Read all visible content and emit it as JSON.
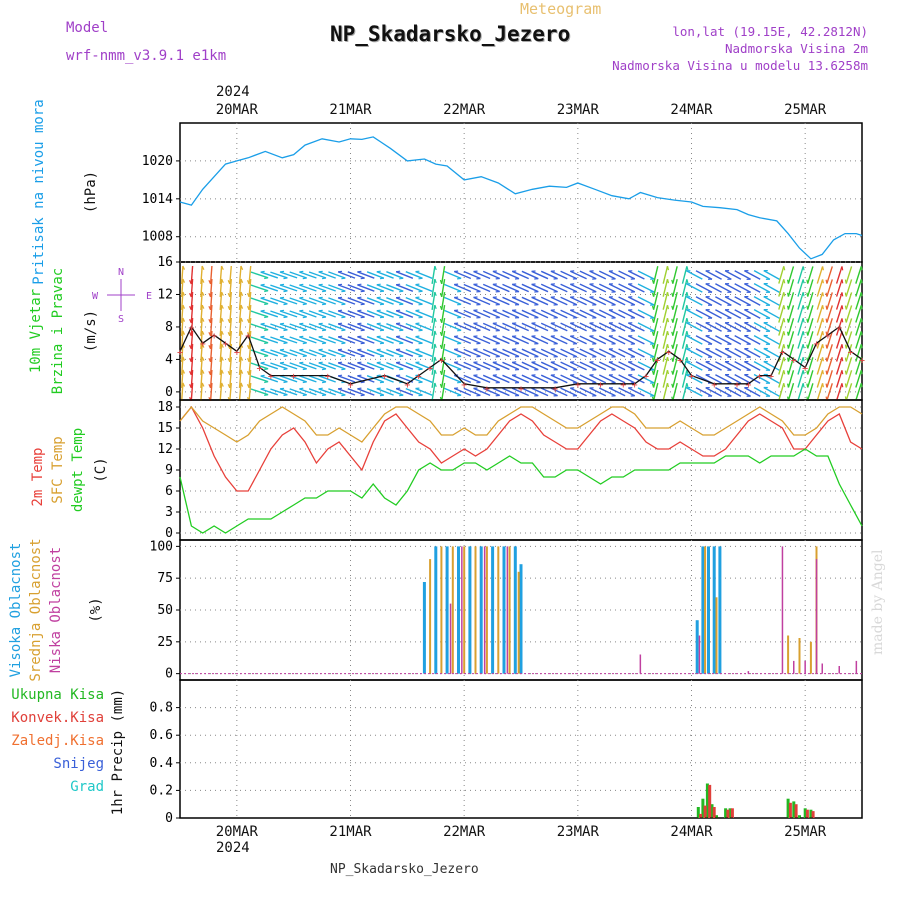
{
  "header": {
    "subtitle": "Meteogram",
    "title": "NP_Skadarsko_Jezero",
    "model_label": "Model",
    "model_value": "wrf-nmm_v3.9.1  e1km",
    "lonlat": "lon,lat (19.15E, 42.2812N)",
    "elevation": "Nadmorska Visina 2m",
    "model_elevation": "Nadmorska Visina u modelu 13.6258m",
    "year_top": "2024",
    "year_bottom": "2024",
    "footer": "NP_Skadarsko_Jezero",
    "watermark": "made by Angel"
  },
  "colors": {
    "pressure": "#1a9ee8",
    "purple": "#a040c8",
    "green": "#22cc22",
    "red": "#e8403a",
    "orange": "#d8a030",
    "blue": "#3a60d8",
    "magenta": "#c83aa0",
    "cyan": "#20c8c8",
    "cloud_high": "#20a0e0",
    "cloud_mid": "#d8a030",
    "cloud_low": "#c040a0",
    "precip_total": "#22b822",
    "precip_conv": "#e0403a"
  },
  "chart_data": [
    {
      "type": "line",
      "name": "pressure",
      "labels": [
        "Pritisak na nivou mora",
        "(hPa)"
      ],
      "x_ticks": [
        "20MAR",
        "21MAR",
        "22MAR",
        "23MAR",
        "24MAR",
        "25MAR"
      ],
      "ylim": [
        1004,
        1026
      ],
      "y_ticks": [
        1008,
        1014,
        1020
      ],
      "x": [
        19.5,
        19.6,
        19.7,
        19.8,
        19.9,
        20.0,
        20.1,
        20.25,
        20.4,
        20.5,
        20.6,
        20.75,
        20.9,
        21.0,
        21.1,
        21.2,
        21.35,
        21.5,
        21.65,
        21.75,
        21.85,
        22.0,
        22.15,
        22.3,
        22.45,
        22.6,
        22.75,
        22.9,
        23.0,
        23.15,
        23.3,
        23.45,
        23.55,
        23.7,
        23.85,
        24.0,
        24.1,
        24.25,
        24.4,
        24.5,
        24.6,
        24.75,
        24.85,
        24.95,
        25.05,
        25.15,
        25.25,
        25.35,
        25.45,
        25.5
      ],
      "y": [
        1013.5,
        1013,
        1015.5,
        1017.5,
        1019.5,
        1020.0,
        1020.5,
        1021.5,
        1020.5,
        1021,
        1022.5,
        1023.5,
        1023.0,
        1023.5,
        1023.4,
        1023.8,
        1022.0,
        1020.0,
        1020.3,
        1019.5,
        1019.2,
        1017.0,
        1017.5,
        1016.5,
        1014.8,
        1015.5,
        1016.0,
        1015.8,
        1016.5,
        1015.5,
        1014.5,
        1014.0,
        1015.0,
        1014.2,
        1013.8,
        1013.5,
        1012.8,
        1012.6,
        1012.3,
        1011.5,
        1011.0,
        1010.5,
        1008.5,
        1006.2,
        1004.5,
        1005.2,
        1007.5,
        1008.5,
        1008.5,
        1008.2
      ]
    },
    {
      "type": "line",
      "name": "wind",
      "labels": [
        "10m Vjetar",
        "Brzina i Pravac",
        "(m/s)"
      ],
      "compass": [
        "N",
        "W",
        "E",
        "S"
      ],
      "ylim": [
        -1,
        16
      ],
      "y_ticks": [
        0,
        4,
        8,
        12,
        16
      ],
      "x": [
        19.5,
        19.6,
        19.7,
        19.8,
        19.9,
        20.0,
        20.1,
        20.2,
        20.3,
        20.5,
        20.8,
        21.0,
        21.3,
        21.5,
        21.6,
        21.7,
        21.8,
        22.0,
        22.2,
        22.5,
        22.8,
        23.0,
        23.2,
        23.4,
        23.5,
        23.6,
        23.7,
        23.8,
        23.9,
        24.0,
        24.2,
        24.4,
        24.5,
        24.6,
        24.7,
        24.8,
        24.9,
        25.0,
        25.1,
        25.2,
        25.3,
        25.4,
        25.5
      ],
      "y": [
        5,
        8,
        6,
        7,
        6,
        5,
        7,
        3,
        2,
        2,
        2,
        1,
        2,
        1,
        2,
        3,
        4,
        1,
        0.5,
        0.5,
        0.5,
        1,
        1,
        1,
        1,
        2,
        4,
        5,
        4,
        2,
        1,
        1,
        1,
        2,
        2,
        5,
        4,
        3,
        6,
        7,
        8,
        5,
        4
      ]
    },
    {
      "type": "line",
      "name": "temperature",
      "labels": [
        "2m Temp",
        "SFC Temp",
        "dewpt Temp",
        "(C)"
      ],
      "series_names": [
        "2m Temp",
        "SFC Temp",
        "dewpt Temp"
      ],
      "ylim": [
        -1,
        19
      ],
      "y_ticks": [
        0,
        3,
        6,
        9,
        12,
        15,
        18
      ],
      "x": [
        19.5,
        19.6,
        19.7,
        19.8,
        19.9,
        20.0,
        20.1,
        20.2,
        20.3,
        20.4,
        20.5,
        20.6,
        20.7,
        20.8,
        20.9,
        21.0,
        21.1,
        21.2,
        21.3,
        21.4,
        21.5,
        21.6,
        21.7,
        21.8,
        21.9,
        22.0,
        22.1,
        22.2,
        22.3,
        22.4,
        22.5,
        22.6,
        22.7,
        22.8,
        22.9,
        23.0,
        23.1,
        23.2,
        23.3,
        23.4,
        23.5,
        23.6,
        23.7,
        23.8,
        23.9,
        24.0,
        24.1,
        24.2,
        24.3,
        24.4,
        24.5,
        24.6,
        24.7,
        24.8,
        24.9,
        25.0,
        25.1,
        25.2,
        25.3,
        25.4,
        25.5
      ],
      "series": [
        {
          "name": "2m Temp",
          "values": [
            16,
            18,
            15,
            11,
            8,
            6,
            6,
            9,
            12,
            14,
            15,
            13,
            10,
            12,
            13,
            11,
            9,
            13,
            16,
            17,
            15,
            13,
            12,
            10,
            11,
            12,
            11,
            12,
            14,
            16,
            17,
            16,
            14,
            13,
            12,
            12,
            14,
            16,
            17,
            16,
            15,
            13,
            12,
            12,
            13,
            12,
            11,
            11,
            12,
            14,
            16,
            17,
            16,
            15,
            12,
            12,
            14,
            16,
            17,
            13,
            12
          ]
        },
        {
          "name": "SFC Temp",
          "values": [
            16,
            18,
            16,
            15,
            14,
            13,
            14,
            16,
            17,
            18,
            17,
            16,
            14,
            14,
            15,
            14,
            13,
            15,
            17,
            18,
            18,
            17,
            16,
            14,
            14,
            15,
            14,
            14,
            16,
            17,
            18,
            18,
            17,
            16,
            15,
            15,
            16,
            17,
            18,
            18,
            17,
            15,
            15,
            15,
            16,
            15,
            14,
            14,
            15,
            16,
            17,
            18,
            17,
            16,
            14,
            14,
            15,
            17,
            18,
            18,
            17
          ]
        },
        {
          "name": "dewpt Temp",
          "values": [
            8,
            1,
            0,
            1,
            0,
            1,
            2,
            2,
            2,
            3,
            4,
            5,
            5,
            6,
            6,
            6,
            5,
            7,
            5,
            4,
            6,
            9,
            10,
            9,
            9,
            10,
            10,
            9,
            10,
            11,
            10,
            10,
            8,
            8,
            9,
            9,
            8,
            7,
            8,
            8,
            9,
            9,
            9,
            9,
            10,
            10,
            10,
            10,
            11,
            11,
            11,
            10,
            11,
            11,
            11,
            12,
            11,
            11,
            7,
            4,
            1
          ]
        }
      ]
    },
    {
      "type": "bar",
      "name": "cloud",
      "labels": [
        "Visoka Oblacnost",
        "Srednja Oblacnost",
        "Niska Oblacnost",
        "(%)"
      ],
      "series_names": [
        "Visoka Oblacnost",
        "Srednja Oblacnost",
        "Niska Oblacnost"
      ],
      "ylim": [
        -5,
        105
      ],
      "y_ticks": [
        0,
        25,
        50,
        75,
        100
      ],
      "series": [
        {
          "name": "Visoka Oblacnost",
          "x": [
            21.65,
            21.75,
            21.85,
            21.95,
            22.05,
            22.15,
            22.25,
            22.35,
            22.45,
            22.5,
            24.05,
            24.1,
            24.15,
            24.2,
            24.25
          ],
          "values": [
            72,
            100,
            100,
            100,
            100,
            100,
            100,
            100,
            100,
            86,
            42,
            100,
            100,
            100,
            100
          ]
        },
        {
          "name": "Srednja Oblacnost",
          "x": [
            21.7,
            21.8,
            21.9,
            22.0,
            22.1,
            22.2,
            22.3,
            22.4,
            22.48,
            24.12,
            24.22,
            24.85,
            24.95,
            25.05,
            25.1
          ],
          "values": [
            90,
            100,
            100,
            100,
            100,
            100,
            100,
            100,
            80,
            100,
            60,
            30,
            28,
            25,
            100
          ]
        },
        {
          "name": "Niska Oblacnost",
          "x": [
            21.88,
            21.98,
            22.18,
            22.38,
            23.55,
            24.07,
            24.5,
            24.8,
            24.9,
            25.0,
            25.1,
            25.15,
            25.3,
            25.45
          ],
          "values": [
            55,
            100,
            100,
            100,
            15,
            30,
            2,
            100,
            10,
            10,
            90,
            8,
            6,
            10
          ]
        }
      ]
    },
    {
      "type": "bar",
      "name": "precipitation",
      "labels": [
        "1hr Precip (mm)"
      ],
      "legend": [
        "Ukupna Kisa",
        "Konvek.Kisa",
        "Zaledj.Kisa",
        "Snijeg",
        "Grad"
      ],
      "ylim": [
        0,
        1
      ],
      "y_ticks": [
        0,
        0.2,
        0.4,
        0.6,
        0.8
      ],
      "x_ticks": [
        "20MAR",
        "21MAR",
        "22MAR",
        "23MAR",
        "24MAR",
        "25MAR"
      ],
      "series": [
        {
          "name": "Ukupna Kisa",
          "x": [
            24.06,
            24.1,
            24.14,
            24.18,
            24.22,
            24.3,
            24.34,
            24.85,
            24.9,
            24.95,
            25.0,
            25.05
          ],
          "values": [
            0.08,
            0.14,
            0.25,
            0.1,
            0.02,
            0.07,
            0.07,
            0.14,
            0.12,
            0.02,
            0.07,
            0.06
          ]
        },
        {
          "name": "Konvek.Kisa",
          "x": [
            24.08,
            24.12,
            24.16,
            24.2,
            24.32,
            24.36,
            24.87,
            24.92,
            25.02,
            25.07
          ],
          "values": [
            0.03,
            0.09,
            0.24,
            0.08,
            0.06,
            0.07,
            0.11,
            0.1,
            0.06,
            0.05
          ]
        }
      ]
    }
  ]
}
